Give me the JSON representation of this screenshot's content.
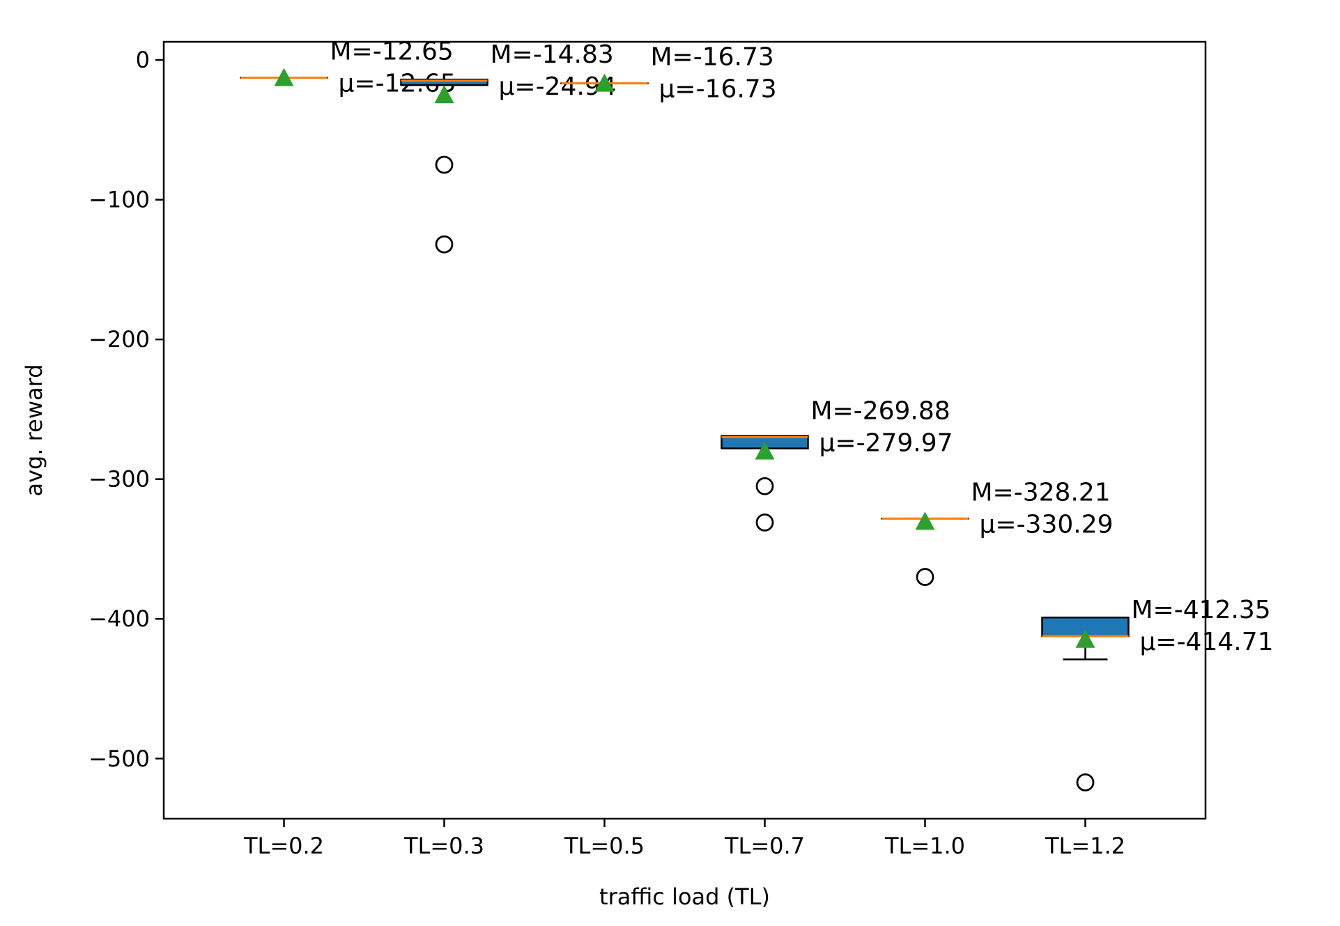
{
  "chart_data": {
    "type": "box",
    "xlabel": "traffic load (TL)",
    "ylabel": "avg. reward",
    "ylim": [
      -543,
      13
    ],
    "yticks": [
      0,
      -100,
      -200,
      -300,
      -400,
      -500
    ],
    "ytick_labels": [
      "0",
      "−100",
      "−200",
      "−300",
      "−400",
      "−500"
    ],
    "categories": [
      "TL=0.2",
      "TL=0.3",
      "TL=0.5",
      "TL=0.7",
      "TL=1.0",
      "TL=1.2"
    ],
    "boxes": [
      {
        "category": "TL=0.2",
        "median": -12.65,
        "mean": -12.65,
        "q1": -12.65,
        "q3": -12.65,
        "whisker_low": -12.65,
        "whisker_high": -12.65,
        "outliers": [],
        "median_label": "M=-12.65",
        "mean_label": "μ=-12.65"
      },
      {
        "category": "TL=0.3",
        "median": -14.83,
        "mean": -24.94,
        "q1": -18.0,
        "q3": -14.0,
        "whisker_low": -18.0,
        "whisker_high": -14.0,
        "outliers": [
          -75,
          -132
        ],
        "median_label": "M=-14.83",
        "mean_label": "μ=-24.94"
      },
      {
        "category": "TL=0.5",
        "median": -16.73,
        "mean": -16.73,
        "q1": -16.73,
        "q3": -16.73,
        "whisker_low": -16.73,
        "whisker_high": -16.73,
        "outliers": [],
        "median_label": "M=-16.73",
        "mean_label": "μ=-16.73"
      },
      {
        "category": "TL=0.7",
        "median": -269.88,
        "mean": -279.97,
        "q1": -278.0,
        "q3": -269.0,
        "whisker_low": -278.0,
        "whisker_high": -269.0,
        "outliers": [
          -305,
          -331
        ],
        "median_label": "M=-269.88",
        "mean_label": "μ=-279.97"
      },
      {
        "category": "TL=1.0",
        "median": -328.21,
        "mean": -330.29,
        "q1": -328.21,
        "q3": -328.21,
        "whisker_low": -328.21,
        "whisker_high": -328.21,
        "outliers": [
          -370
        ],
        "median_label": "M=-328.21",
        "mean_label": "μ=-330.29"
      },
      {
        "category": "TL=1.2",
        "median": -412.35,
        "mean": -414.71,
        "q1": -412.35,
        "q3": -399.0,
        "whisker_low": -429.0,
        "whisker_high": -399.0,
        "outliers": [
          -517
        ],
        "median_label": "M=-412.35",
        "mean_label": "μ=-414.71"
      }
    ],
    "colors": {
      "box_fill": "#1f77b4",
      "median_line": "#ff7f0e",
      "mean_marker": "#2ca02c",
      "outline": "#000000"
    },
    "grid": false,
    "legend": "none"
  }
}
